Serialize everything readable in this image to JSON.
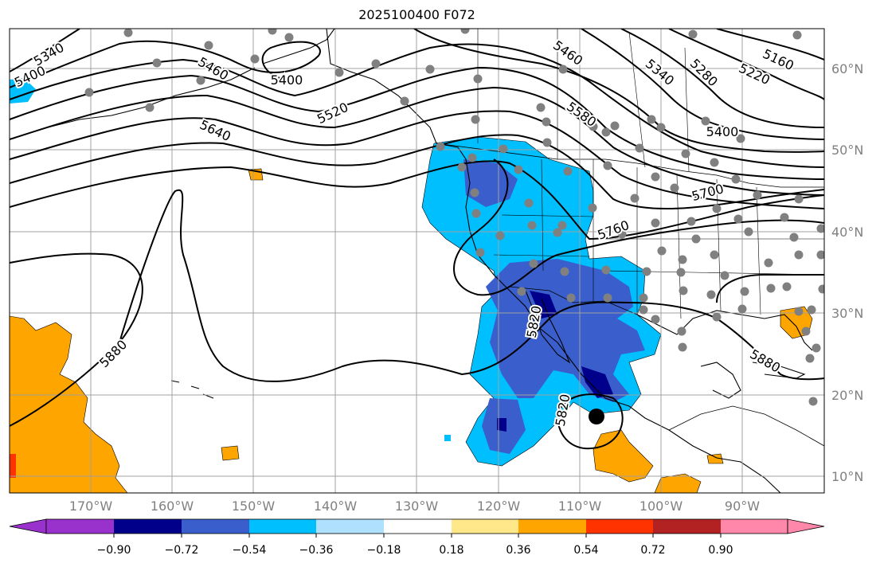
{
  "title": "2025100400 F072",
  "lat_labels": [
    "60°N",
    "50°N",
    "40°N",
    "30°N",
    "20°N",
    "10°N"
  ],
  "lon_labels": [
    "170°W",
    "160°W",
    "150°W",
    "140°W",
    "130°W",
    "120°W",
    "110°W",
    "100°W",
    "90°W"
  ],
  "contour_labels": [
    "5160",
    "5220",
    "5280",
    "5340",
    "5340",
    "5400",
    "5400",
    "5400",
    "5460",
    "5460",
    "5520",
    "5580",
    "5640",
    "5700",
    "5760",
    "5820",
    "5820",
    "5880",
    "5880"
  ],
  "colorbar": {
    "ticks": [
      "−0.90",
      "−0.72",
      "−0.54",
      "−0.36",
      "−0.18",
      "0.18",
      "0.36",
      "0.54",
      "0.72",
      "0.90"
    ],
    "colors": [
      "#9932cc",
      "#00008b",
      "#3a5fcd",
      "#00bfff",
      "#afe1ff",
      "#ffffff",
      "#ffe88a",
      "#ffa500",
      "#ff3300",
      "#b22222",
      "#ff88aa"
    ]
  },
  "colors": {
    "grid": "#a0a0a0",
    "contour": "#000000",
    "station": "#808080",
    "land_outline": "#000000"
  }
}
